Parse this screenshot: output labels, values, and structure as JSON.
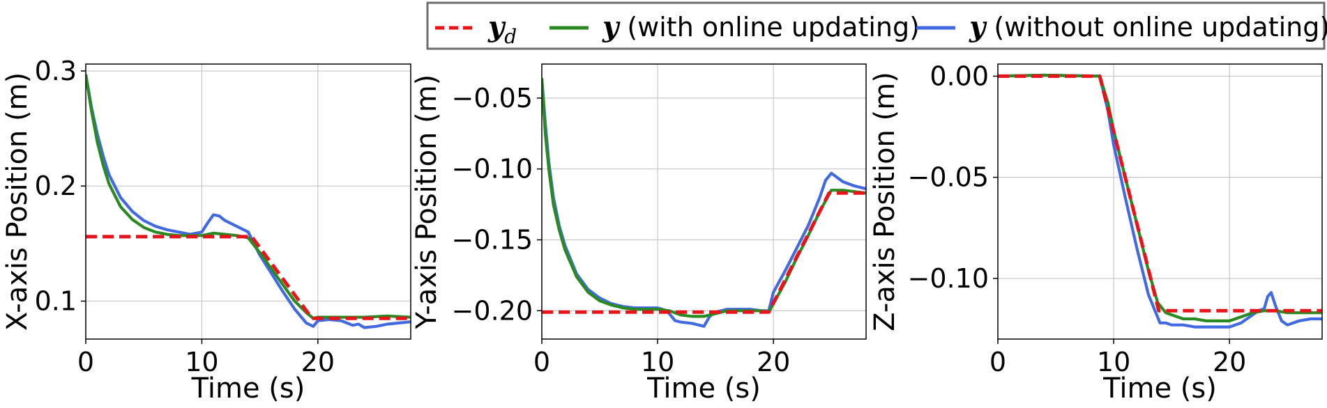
{
  "legend": {
    "entries": [
      {
        "symbol": "y",
        "subscript": "d",
        "text": "",
        "color": "#e8141b",
        "style": "dashed"
      },
      {
        "symbol": "y",
        "subscript": "",
        "text": " (with online updating)",
        "color": "#2a8a22",
        "style": "solid"
      },
      {
        "symbol": "y",
        "subscript": "",
        "text": " (without online updating)",
        "color": "#4169e1",
        "style": "solid"
      }
    ]
  },
  "chart_data": [
    {
      "type": "line",
      "xlabel": "Time (s)",
      "ylabel": "X-axis Position (m)",
      "xlim": [
        0,
        28
      ],
      "ylim": [
        0.067,
        0.306
      ],
      "xticks": [
        0,
        10,
        20
      ],
      "xtick_labels": [
        "0",
        "10",
        "20"
      ],
      "yticks": [
        0.1,
        0.2,
        0.3
      ],
      "ytick_labels": [
        "0.1",
        "0.2",
        "0.3"
      ],
      "grid": true,
      "series": [
        {
          "key": "desired",
          "x": [
            0,
            14.3,
            19.5,
            28
          ],
          "y": [
            0.156,
            0.156,
            0.085,
            0.085
          ]
        },
        {
          "key": "with",
          "x": [
            0,
            0.5,
            1,
            1.5,
            2,
            3,
            4,
            5,
            6,
            7,
            8,
            9,
            10,
            11,
            12,
            13,
            14,
            15,
            16,
            17,
            18,
            19,
            19.6,
            20,
            22,
            24,
            26,
            28
          ],
          "y": [
            0.297,
            0.265,
            0.238,
            0.218,
            0.202,
            0.182,
            0.171,
            0.164,
            0.16,
            0.158,
            0.157,
            0.157,
            0.157,
            0.159,
            0.158,
            0.157,
            0.155,
            0.142,
            0.128,
            0.114,
            0.1,
            0.09,
            0.085,
            0.086,
            0.086,
            0.086,
            0.087,
            0.086
          ]
        },
        {
          "key": "without",
          "x": [
            0,
            0.5,
            1,
            1.5,
            2,
            3,
            4,
            5,
            6,
            7,
            8,
            9,
            10,
            10.5,
            11,
            11.5,
            12,
            13,
            14,
            15,
            16,
            17,
            18,
            19,
            19.6,
            20,
            21,
            22,
            23,
            23.5,
            24,
            25,
            26,
            28
          ],
          "y": [
            0.297,
            0.268,
            0.245,
            0.226,
            0.21,
            0.19,
            0.178,
            0.17,
            0.165,
            0.162,
            0.16,
            0.158,
            0.16,
            0.168,
            0.175,
            0.174,
            0.17,
            0.165,
            0.16,
            0.14,
            0.124,
            0.108,
            0.093,
            0.081,
            0.078,
            0.083,
            0.084,
            0.083,
            0.079,
            0.08,
            0.077,
            0.078,
            0.08,
            0.082
          ]
        }
      ]
    },
    {
      "type": "line",
      "xlabel": "Time (s)",
      "ylabel": "Y-axis Position (m)",
      "xlim": [
        0,
        28
      ],
      "ylim": [
        -0.22,
        -0.026
      ],
      "xticks": [
        0,
        10,
        20
      ],
      "xtick_labels": [
        "0",
        "10",
        "20"
      ],
      "yticks": [
        -0.05,
        -0.1,
        -0.15,
        -0.2
      ],
      "ytick_labels": [
        "−0.05",
        "−0.10",
        "−0.15",
        "−0.20"
      ],
      "grid": true,
      "series": [
        {
          "key": "desired",
          "x": [
            0,
            19.6,
            24.8,
            28
          ],
          "y": [
            -0.201,
            -0.201,
            -0.117,
            -0.117
          ]
        },
        {
          "key": "with",
          "x": [
            0,
            0.3,
            0.6,
            1,
            1.5,
            2,
            3,
            4,
            5,
            6,
            7,
            8,
            9,
            10,
            11,
            12,
            13,
            14,
            15,
            16,
            17,
            18,
            19,
            19.6,
            21,
            22,
            23,
            24,
            25,
            26,
            27,
            28
          ],
          "y": [
            -0.036,
            -0.075,
            -0.1,
            -0.125,
            -0.143,
            -0.157,
            -0.176,
            -0.187,
            -0.193,
            -0.196,
            -0.198,
            -0.199,
            -0.199,
            -0.199,
            -0.2,
            -0.203,
            -0.204,
            -0.204,
            -0.202,
            -0.2,
            -0.2,
            -0.2,
            -0.2,
            -0.201,
            -0.18,
            -0.163,
            -0.147,
            -0.13,
            -0.115,
            -0.115,
            -0.116,
            -0.117
          ]
        },
        {
          "key": "without",
          "x": [
            0,
            0.3,
            0.6,
            1,
            1.5,
            2,
            3,
            4,
            5,
            6,
            7,
            8,
            9,
            10,
            10.8,
            11.5,
            12,
            13,
            14,
            14.5,
            15,
            16,
            17,
            18,
            19,
            19.6,
            20,
            21,
            22,
            23,
            24,
            24.5,
            25,
            26,
            27,
            28
          ],
          "y": [
            -0.036,
            -0.068,
            -0.095,
            -0.12,
            -0.14,
            -0.154,
            -0.174,
            -0.185,
            -0.191,
            -0.195,
            -0.197,
            -0.198,
            -0.198,
            -0.198,
            -0.2,
            -0.207,
            -0.208,
            -0.209,
            -0.211,
            -0.204,
            -0.201,
            -0.199,
            -0.199,
            -0.199,
            -0.2,
            -0.2,
            -0.187,
            -0.172,
            -0.156,
            -0.14,
            -0.12,
            -0.108,
            -0.103,
            -0.109,
            -0.112,
            -0.114
          ]
        }
      ]
    },
    {
      "type": "line",
      "xlabel": "Time (s)",
      "ylabel": "Z-axis Position (m)",
      "xlim": [
        0,
        28
      ],
      "ylim": [
        -0.13,
        0.006
      ],
      "xticks": [
        0,
        10,
        20
      ],
      "xtick_labels": [
        "0",
        "10",
        "20"
      ],
      "yticks": [
        0,
        -0.05,
        -0.1
      ],
      "ytick_labels": [
        "0.00",
        "−0.05",
        "−0.10"
      ],
      "grid": true,
      "series": [
        {
          "key": "desired",
          "x": [
            0,
            8.8,
            13.9,
            28
          ],
          "y": [
            0,
            0,
            -0.116,
            -0.116
          ]
        },
        {
          "key": "with",
          "x": [
            0,
            4,
            8.8,
            9.5,
            10,
            11,
            12,
            13,
            13.8,
            14.5,
            15,
            16,
            17,
            18,
            19,
            20,
            21,
            22,
            23,
            24,
            25,
            26,
            27,
            28
          ],
          "y": [
            0,
            0.0005,
            0,
            -0.013,
            -0.027,
            -0.05,
            -0.073,
            -0.096,
            -0.112,
            -0.117,
            -0.118,
            -0.12,
            -0.12,
            -0.121,
            -0.121,
            -0.121,
            -0.119,
            -0.117,
            -0.116,
            -0.116,
            -0.117,
            -0.117,
            -0.117,
            -0.117
          ]
        },
        {
          "key": "without",
          "x": [
            0,
            4,
            8.8,
            9.5,
            10,
            11,
            12,
            13,
            14,
            14.5,
            15,
            16,
            17,
            18,
            19,
            20,
            21,
            22,
            22.5,
            23,
            23.3,
            23.6,
            24,
            24.5,
            25,
            26,
            27,
            28
          ],
          "y": [
            0,
            0.0005,
            0,
            -0.017,
            -0.034,
            -0.06,
            -0.085,
            -0.108,
            -0.122,
            -0.122,
            -0.123,
            -0.123,
            -0.124,
            -0.124,
            -0.124,
            -0.124,
            -0.122,
            -0.118,
            -0.116,
            -0.115,
            -0.109,
            -0.107,
            -0.114,
            -0.121,
            -0.123,
            -0.121,
            -0.12,
            -0.12
          ]
        }
      ]
    }
  ]
}
